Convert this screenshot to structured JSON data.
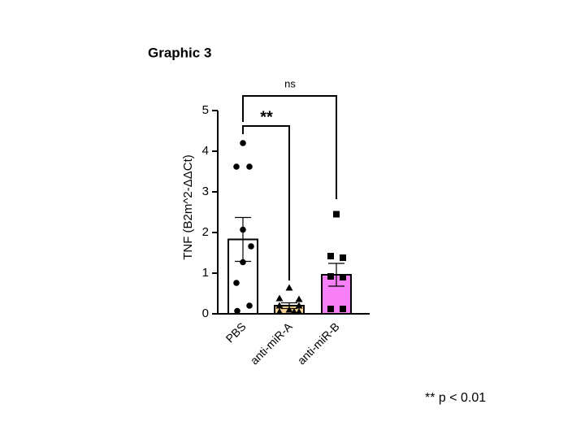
{
  "chart_data": {
    "type": "bar",
    "title": "Graphic 3",
    "y_label": "TNF (B2m^2-ΔΔCt)",
    "categories": [
      "PBS",
      "anti-miR-A",
      "anti-miR-B"
    ],
    "values": [
      1.83,
      0.2,
      0.96
    ],
    "errors": [
      0.54,
      0.07,
      0.28
    ],
    "colors": [
      "#ffffff",
      "#f9d38f",
      "#f77ff7"
    ],
    "markers": [
      "circle",
      "triangle",
      "square"
    ],
    "points": [
      [
        4.2,
        3.62,
        3.62,
        2.07,
        1.66,
        1.27,
        0.76,
        0.2,
        0.07
      ],
      [
        0.64,
        0.38,
        0.36,
        0.2,
        0.2,
        0.1,
        0.05,
        0.05,
        0.05
      ],
      [
        2.45,
        1.42,
        1.38,
        0.92,
        0.9,
        0.12,
        0.12
      ]
    ],
    "ylim": [
      0,
      5
    ],
    "yticks": [
      0,
      1,
      2,
      3,
      4,
      5
    ],
    "annotations": [
      "ns",
      "**"
    ],
    "footnote": "** p < 0.01"
  }
}
